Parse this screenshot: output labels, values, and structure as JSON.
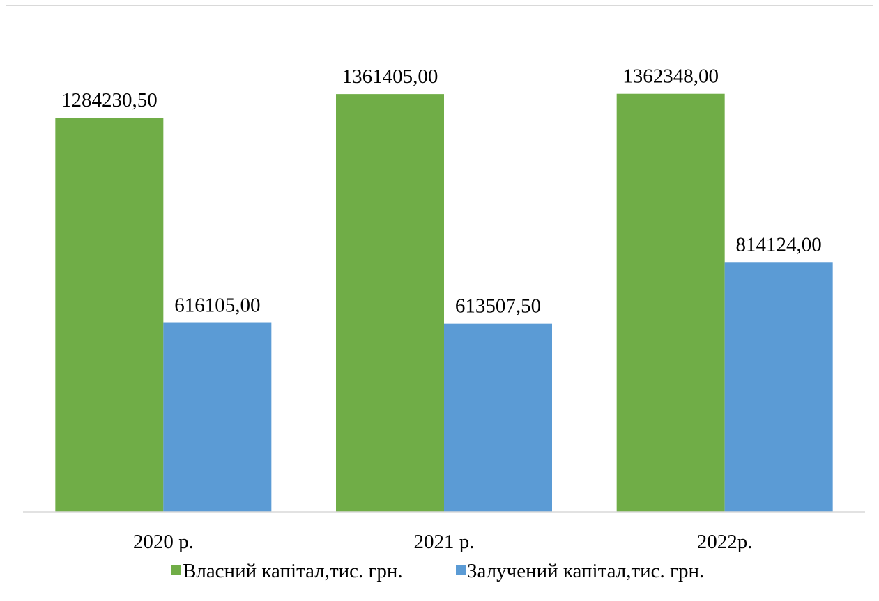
{
  "chart_data": {
    "type": "bar",
    "categories": [
      "2020 р.",
      "2021 р.",
      "2022р."
    ],
    "series": [
      {
        "name": "Власний капітал,тис. грн.",
        "color": "#70ad47",
        "values": [
          1284230.5,
          1361405.0,
          1362348.0
        ],
        "labels": [
          "1284230,50",
          "1361405,00",
          "1362348,00"
        ]
      },
      {
        "name": "Залучений капітал,тис. грн.",
        "color": "#5b9bd5",
        "values": [
          616105.0,
          613507.5,
          814124.0
        ],
        "labels": [
          "616105,00",
          "613507,50",
          "814124,00"
        ]
      }
    ],
    "ylim": [
      0,
      1600000
    ],
    "grid": false,
    "legend_position": "bottom",
    "title": "",
    "xlabel": "",
    "ylabel": ""
  }
}
